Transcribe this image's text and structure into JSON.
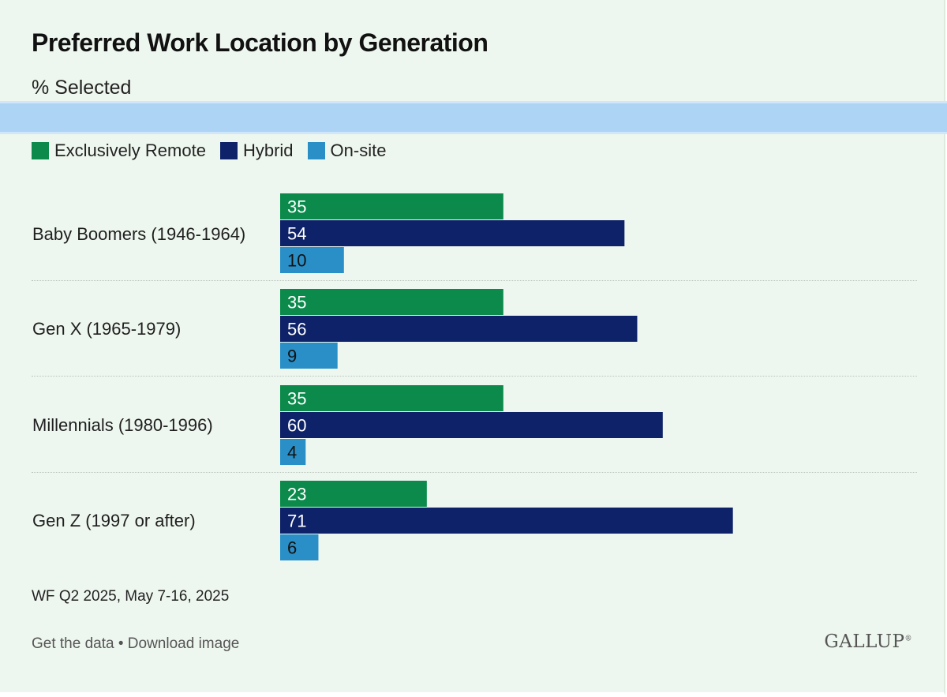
{
  "title": "Preferred Work Location by Generation",
  "subtitle": "% Selected",
  "colors": {
    "remote": "#0b8a4b",
    "hybrid": "#0d2268",
    "onsite": "#2a8fc7",
    "background": "#eef7ef",
    "band": "#add3f5"
  },
  "legend": [
    {
      "label": "Exclusively Remote"
    },
    {
      "label": "Hybrid"
    },
    {
      "label": "On-site"
    }
  ],
  "source": "WF Q2 2025, May 7-16, 2025",
  "links": {
    "get_data": "Get the data",
    "separator": "•",
    "download": "Download image"
  },
  "brand": "GALLUP",
  "chart_data": {
    "type": "bar",
    "orientation": "horizontal",
    "title": "Preferred Work Location by Generation",
    "subtitle": "% Selected",
    "xlabel": "",
    "ylabel": "",
    "xlim": [
      0,
      100
    ],
    "grid": false,
    "legend_position": "top-left",
    "categories": [
      "Baby Boomers (1946-1964)",
      "Gen X (1965-1979)",
      "Millennials (1980-1996)",
      "Gen Z (1997 or after)"
    ],
    "series": [
      {
        "name": "Exclusively Remote",
        "values": [
          35,
          35,
          35,
          23
        ]
      },
      {
        "name": "Hybrid",
        "values": [
          54,
          56,
          60,
          71
        ]
      },
      {
        "name": "On-site",
        "values": [
          10,
          9,
          4,
          6
        ]
      }
    ]
  }
}
